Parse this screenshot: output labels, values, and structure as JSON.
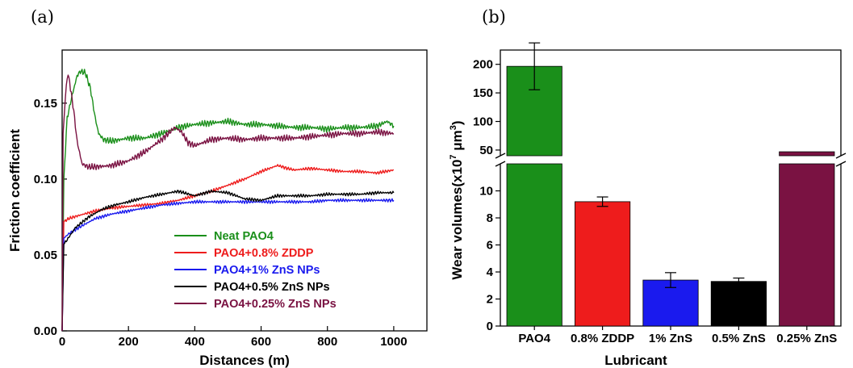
{
  "panel_labels": {
    "a": "(a)",
    "b": "(b)"
  },
  "chart_data": [
    {
      "type": "line",
      "panel": "(a)",
      "xlabel": "Distances (m)",
      "ylabel": "Friction coefficient",
      "xlim": [
        0,
        1100
      ],
      "ylim": [
        0,
        0.185
      ],
      "xticks": [
        "0",
        "200",
        "400",
        "600",
        "800",
        "1000"
      ],
      "yticks": [
        "0.00",
        "0.05",
        "0.10",
        "0.15"
      ],
      "legend_position": "lower-center",
      "series": [
        {
          "name": "Neat PAO4",
          "color": "#1a8f1a",
          "x": [
            0,
            5,
            15,
            30,
            45,
            55,
            70,
            85,
            100,
            110,
            125,
            150,
            200,
            250,
            300,
            350,
            400,
            450,
            500,
            550,
            600,
            650,
            700,
            750,
            800,
            850,
            900,
            950,
            980,
            1000
          ],
          "y": [
            0.0,
            0.1,
            0.14,
            0.155,
            0.168,
            0.171,
            0.17,
            0.16,
            0.14,
            0.13,
            0.126,
            0.125,
            0.127,
            0.127,
            0.13,
            0.134,
            0.136,
            0.137,
            0.138,
            0.136,
            0.136,
            0.135,
            0.134,
            0.134,
            0.133,
            0.134,
            0.134,
            0.135,
            0.138,
            0.135
          ]
        },
        {
          "name": "PAO4+0.8% ZDDP",
          "color": "#ee1c1c",
          "x": [
            0,
            5,
            20,
            50,
            100,
            150,
            200,
            250,
            300,
            350,
            400,
            450,
            500,
            550,
            600,
            650,
            680,
            700,
            750,
            800,
            850,
            900,
            950,
            1000
          ],
          "y": [
            0.0,
            0.072,
            0.074,
            0.076,
            0.079,
            0.081,
            0.082,
            0.083,
            0.084,
            0.086,
            0.089,
            0.092,
            0.096,
            0.1,
            0.105,
            0.109,
            0.107,
            0.106,
            0.107,
            0.106,
            0.105,
            0.105,
            0.104,
            0.106
          ]
        },
        {
          "name": "PAO4+1% ZnS NPs",
          "color": "#1a1aee",
          "x": [
            0,
            5,
            20,
            50,
            100,
            150,
            200,
            250,
            300,
            350,
            400,
            450,
            500,
            550,
            600,
            650,
            700,
            750,
            800,
            850,
            900,
            950,
            1000
          ],
          "y": [
            0.0,
            0.061,
            0.064,
            0.068,
            0.074,
            0.077,
            0.079,
            0.081,
            0.083,
            0.084,
            0.085,
            0.085,
            0.085,
            0.085,
            0.085,
            0.085,
            0.085,
            0.085,
            0.086,
            0.086,
            0.086,
            0.086,
            0.086
          ]
        },
        {
          "name": "PAO4+0.5% ZnS NPs",
          "color": "#000000",
          "x": [
            0,
            5,
            15,
            40,
            80,
            120,
            160,
            200,
            250,
            300,
            350,
            400,
            450,
            500,
            550,
            600,
            650,
            700,
            750,
            800,
            850,
            900,
            950,
            1000
          ],
          "y": [
            0.0,
            0.057,
            0.06,
            0.068,
            0.075,
            0.08,
            0.083,
            0.085,
            0.088,
            0.09,
            0.092,
            0.089,
            0.092,
            0.091,
            0.087,
            0.086,
            0.089,
            0.089,
            0.089,
            0.09,
            0.09,
            0.09,
            0.091,
            0.091
          ]
        },
        {
          "name": "PAO4+0.25% ZnS NPs",
          "color": "#7a1242",
          "x": [
            0,
            3,
            10,
            18,
            25,
            35,
            45,
            60,
            80,
            100,
            150,
            200,
            250,
            300,
            340,
            360,
            380,
            400,
            450,
            500,
            550,
            600,
            650,
            700,
            750,
            800,
            850,
            900,
            950,
            1000
          ],
          "y": [
            0.0,
            0.13,
            0.155,
            0.17,
            0.16,
            0.145,
            0.125,
            0.11,
            0.108,
            0.108,
            0.109,
            0.112,
            0.118,
            0.126,
            0.134,
            0.131,
            0.124,
            0.122,
            0.126,
            0.127,
            0.126,
            0.127,
            0.127,
            0.127,
            0.128,
            0.129,
            0.13,
            0.13,
            0.131,
            0.13
          ]
        }
      ]
    },
    {
      "type": "bar",
      "panel": "(b)",
      "xlabel": "Lubricant",
      "ylabel_prefix": "Wear volumes(x10",
      "ylabel_sup": "7",
      "ylabel_unit": " μm",
      "ylabel_sup2": "3",
      "ylabel_suffix": ")",
      "categories": [
        "PAO4",
        "0.8% ZDDP",
        "1% ZnS",
        "0.5% ZnS",
        "0.25% ZnS"
      ],
      "values": [
        196.5,
        9.2,
        3.4,
        3.3,
        47
      ],
      "errors": [
        41,
        0.35,
        0.55,
        0.25,
        null
      ],
      "colors": [
        "#1a8f1a",
        "#ee1c1c",
        "#1a1aee",
        "#000000",
        "#7a1242"
      ],
      "axis_break": {
        "lower": [
          0,
          12
        ],
        "upper": [
          40,
          225
        ]
      },
      "yticks_lower": [
        "0",
        "2",
        "4",
        "6",
        "8",
        "10"
      ],
      "yticks_upper": [
        "50",
        "100",
        "150",
        "200"
      ]
    }
  ]
}
